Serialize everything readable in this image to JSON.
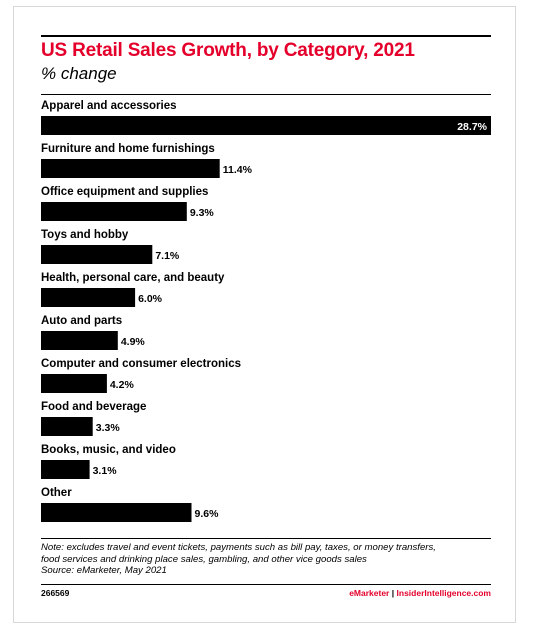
{
  "header": {
    "title": "US Retail Sales Growth, by Category, 2021",
    "subtitle": "% change"
  },
  "chart_data": {
    "type": "bar",
    "orientation": "horizontal",
    "title": "US Retail Sales Growth, by Category, 2021",
    "subtitle": "% change",
    "categories": [
      "Apparel and accessories",
      "Furniture and home furnishings",
      "Office equipment and supplies",
      "Toys and hobby",
      "Health, personal care, and beauty",
      "Auto and parts",
      "Computer and consumer electronics",
      "Food and beverage",
      "Books, music, and video",
      "Other"
    ],
    "values": [
      28.7,
      11.4,
      9.3,
      7.1,
      6.0,
      4.9,
      4.2,
      3.3,
      3.1,
      9.6
    ],
    "value_labels": [
      "28.7%",
      "11.4%",
      "9.3%",
      "7.1%",
      "6.0%",
      "4.9%",
      "4.2%",
      "3.3%",
      "3.1%",
      "9.6%"
    ],
    "bar_color": "#000000",
    "grid": false,
    "legend": "none"
  },
  "footer": {
    "note_lines": [
      "Note: excludes travel and event tickets, payments such as bill pay, taxes, or money transfers,",
      "food services and drinking place sales, gambling, and other vice goods sales",
      "Source: eMarketer, May 2021"
    ],
    "chart_id": "266569",
    "brand_emarketer": "eMarketer",
    "brand_separator": "|",
    "brand_insider": "InsiderIntelligence.com"
  },
  "colors": {
    "title": "#e4002b",
    "bars": "#000000",
    "text": "#000000"
  }
}
